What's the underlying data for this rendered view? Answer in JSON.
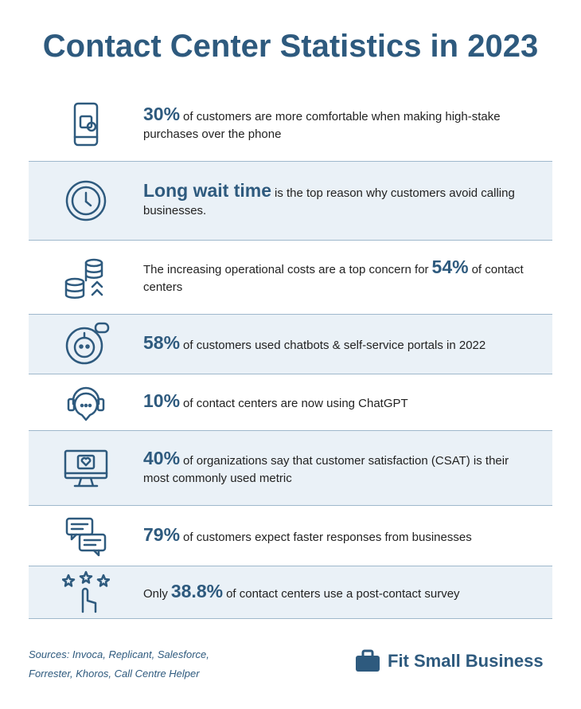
{
  "header": {
    "title": "Contact Center Statistics in 2023"
  },
  "stats": [
    {
      "highlight": "30%",
      "post": "of customers are more comfortable when making high-stake purchases over the phone"
    },
    {
      "highlight": "Long wait time",
      "post": "is the top reason why customers avoid calling businesses."
    },
    {
      "pre": "The increasing operational costs are a top concern for",
      "highlight": "54%",
      "post": "of contact centers"
    },
    {
      "highlight": "58%",
      "post": "of customers used chatbots & self-service portals in 2022"
    },
    {
      "highlight": "10%",
      "post": "of contact centers are now using ChatGPT"
    },
    {
      "highlight": "40%",
      "post": "of organizations say that customer satisfaction (CSAT) is their most commonly used metric"
    },
    {
      "highlight": "79%",
      "post": "of customers expect faster responses from businesses"
    },
    {
      "pre": "Only",
      "highlight": "38.8%",
      "post": "of contact centers use a post-contact survey"
    }
  ],
  "footer": {
    "sources": "Sources: Invoca, Replicant, Salesforce, Forrester, Khoros, Call Centre Helper",
    "brand": "Fit Small Business"
  }
}
